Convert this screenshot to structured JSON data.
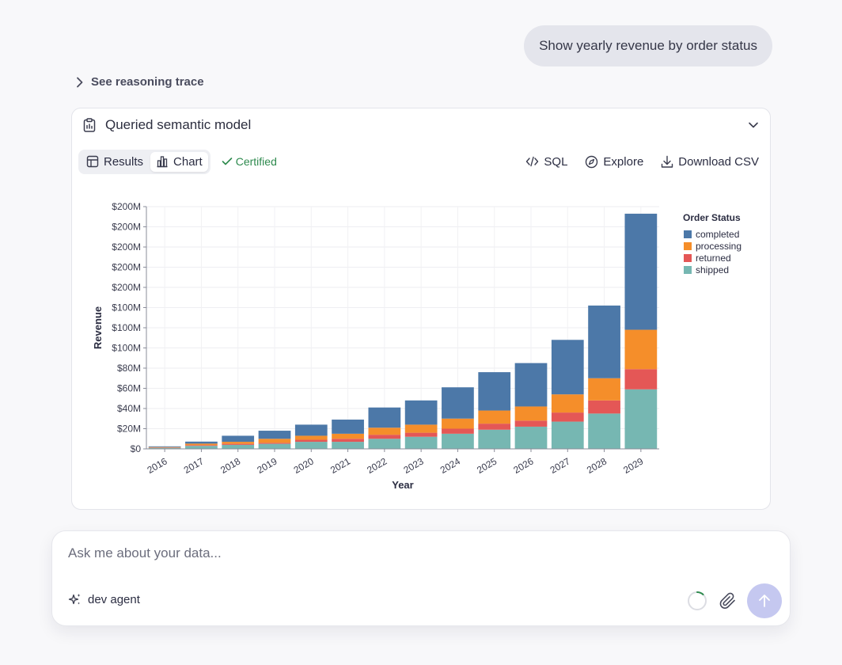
{
  "user_message": "Show yearly revenue by order status",
  "reasoning_link": "See reasoning trace",
  "card": {
    "title": "Queried semantic model",
    "tabs": [
      "Results",
      "Chart"
    ],
    "active_tab": "Chart",
    "certified_label": "Certified",
    "actions": {
      "sql": "SQL",
      "explore": "Explore",
      "download": "Download CSV"
    }
  },
  "composer": {
    "placeholder": "Ask me about your data...",
    "agent_label": "dev agent"
  },
  "colors": {
    "completed": "#4c78a8",
    "processing": "#f58e2a",
    "returned": "#e45756",
    "shipped": "#76b7b2",
    "certified": "#2e8a4e",
    "send_button": "#c5c8f0"
  },
  "chart_data": {
    "type": "bar",
    "stacked": true,
    "xlabel": "Year",
    "ylabel": "Revenue",
    "legend_title": "Order Status",
    "legend_position": "right",
    "y_tick_labels": [
      "$0",
      "$20M",
      "$40M",
      "$60M",
      "$80M",
      "$100M",
      "$100M",
      "$100M",
      "$200M",
      "$200M",
      "$200M",
      "$200M",
      "$200M"
    ],
    "ylim": [
      0,
      240
    ],
    "grid": true,
    "categories": [
      "2016",
      "2017",
      "2018",
      "2019",
      "2020",
      "2021",
      "2022",
      "2023",
      "2024",
      "2025",
      "2026",
      "2027",
      "2028",
      "2029"
    ],
    "series": [
      {
        "name": "shipped",
        "values": [
          1,
          3,
          4,
          5,
          7,
          7,
          10,
          12,
          15,
          19,
          22,
          27,
          35,
          59
        ]
      },
      {
        "name": "returned",
        "values": [
          0.3,
          0.7,
          1,
          1,
          2,
          3,
          4,
          4,
          5,
          6,
          6,
          9,
          13,
          20
        ]
      },
      {
        "name": "processing",
        "values": [
          0.5,
          1.5,
          2,
          4,
          4,
          5,
          7,
          8,
          10,
          13,
          14,
          18,
          22,
          39
        ]
      },
      {
        "name": "completed",
        "values": [
          0.7,
          2,
          6,
          8,
          11,
          14,
          20,
          24,
          31,
          38,
          43,
          54,
          72,
          115
        ]
      }
    ]
  }
}
